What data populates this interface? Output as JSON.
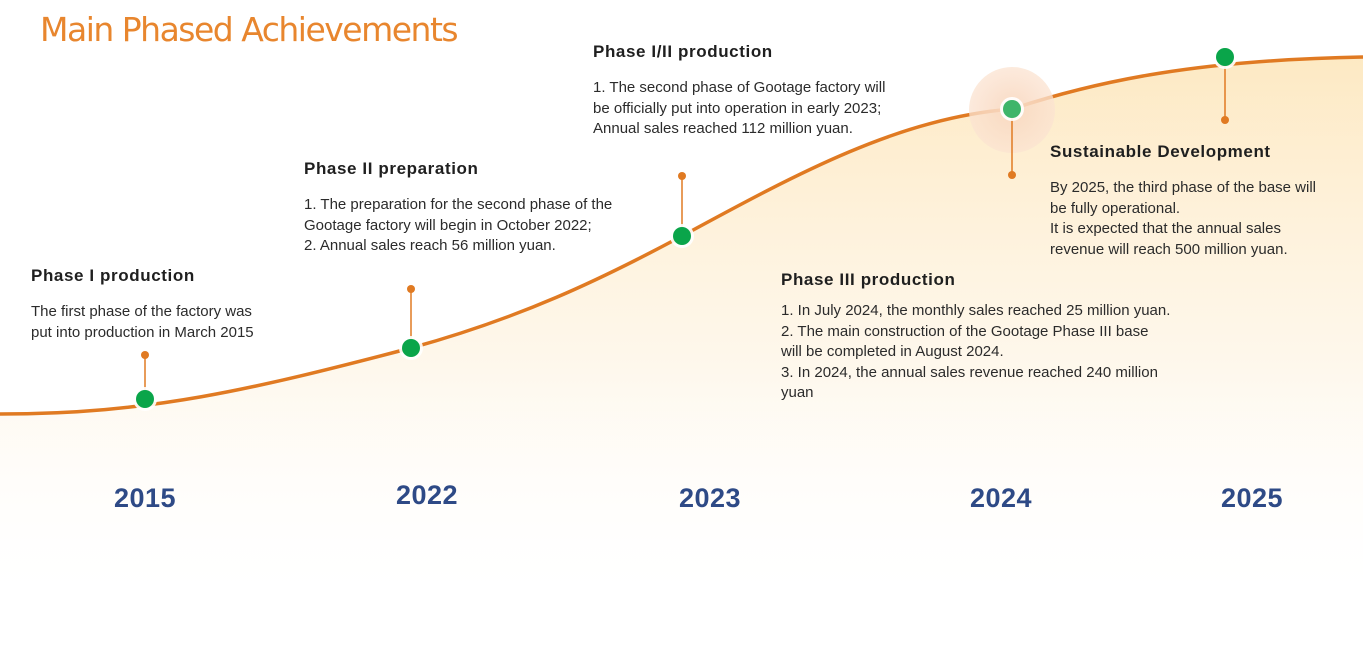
{
  "title": "Main Phased Achievements",
  "colors": {
    "title": "#e8862e",
    "curve": "#e07a22",
    "marker": "#0aa54a",
    "connector": "#e07a22",
    "year": "#2e4a86",
    "fill": "#fdebc8"
  },
  "milestones": [
    {
      "year": "2015",
      "heading": "Phase I production",
      "lines": [
        "The first phase of the factory was",
        "put into production in March 2015"
      ]
    },
    {
      "year": "2022",
      "heading": "Phase II preparation",
      "lines": [
        "1. The preparation for the second phase of the",
        "Gootage factory will begin in October 2022;",
        "2. Annual sales reach 56 million yuan."
      ]
    },
    {
      "year": "2023",
      "heading": "Phase I/II production",
      "lines": [
        "1. The second phase of Gootage factory will",
        "be officially put into operation in early 2023;",
        "Annual sales reached 112 million yuan."
      ]
    },
    {
      "year": "2024",
      "heading": "Phase III production",
      "lines": [
        "1. In July 2024, the monthly sales reached 25 million yuan.",
        "2. The main construction of the Gootage Phase III base",
        "will be completed in August 2024.",
        "3. In 2024, the annual sales revenue reached 240 million",
        "yuan"
      ],
      "highlighted": true
    },
    {
      "year": "2025",
      "heading": "Sustainable Development",
      "lines": [
        "By 2025, the third phase of the base will",
        "be fully operational.",
        "It is expected that the annual sales",
        "revenue will reach 500 million yuan."
      ]
    }
  ]
}
